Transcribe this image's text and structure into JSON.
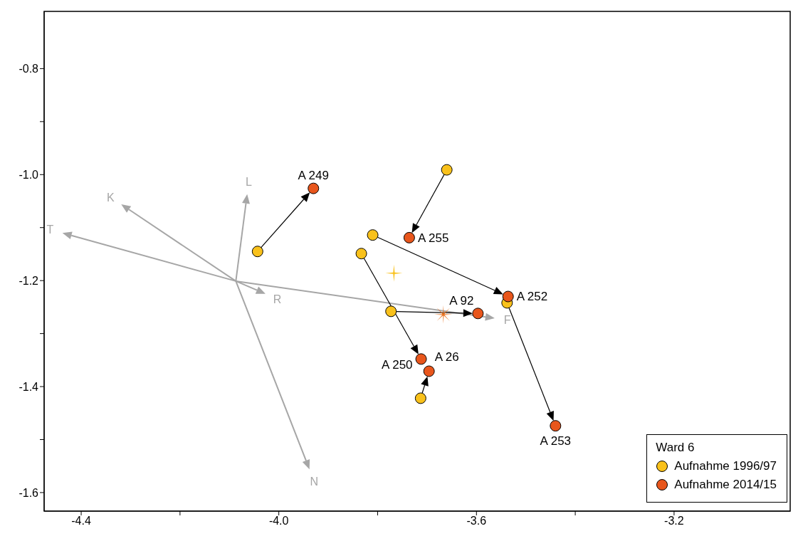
{
  "chart_data": {
    "type": "scatter",
    "xlim": [
      -4.475,
      -2.965
    ],
    "ylim": [
      -1.635,
      -0.692
    ],
    "xticks": [
      {
        "value": -4.4,
        "label": "-4.4"
      },
      {
        "value": -4.2,
        "label": null
      },
      {
        "value": -4.0,
        "label": "-4.0"
      },
      {
        "value": -3.8,
        "label": null
      },
      {
        "value": -3.6,
        "label": "-3.6"
      },
      {
        "value": -3.4,
        "label": null
      },
      {
        "value": -3.2,
        "label": "-3.2"
      }
    ],
    "yticks": [
      {
        "value": -0.8,
        "label": "-0.8"
      },
      {
        "value": -0.9,
        "label": null
      },
      {
        "value": -1.0,
        "label": "-1.0"
      },
      {
        "value": -1.1,
        "label": null
      },
      {
        "value": -1.2,
        "label": "-1.2"
      },
      {
        "value": -1.3,
        "label": null
      },
      {
        "value": -1.4,
        "label": "-1.4"
      },
      {
        "value": -1.5,
        "label": null
      },
      {
        "value": -1.6,
        "label": "-1.6"
      }
    ],
    "grid": false,
    "legend": "bottom right",
    "legend_title": "Ward 6",
    "marker": "circle",
    "series": [
      {
        "type": "scatter",
        "name": "Aufnahme 1996/97",
        "color": "#f9c11b",
        "x": [
          -4.043,
          -3.66,
          -3.81,
          -3.833,
          -3.773,
          -3.713,
          -3.538
        ],
        "values": [
          -1.145,
          -0.991,
          -1.114,
          -1.149,
          -1.258,
          -1.422,
          -1.242
        ]
      },
      {
        "type": "scatter",
        "name": "Aufnahme 2014/15",
        "color": "#e8561c",
        "x": [
          -3.93,
          -3.736,
          -3.536,
          -3.712,
          -3.597,
          -3.696,
          -3.44
        ],
        "values": [
          -1.026,
          -1.119,
          -1.23,
          -1.348,
          -1.262,
          -1.371,
          -1.474
        ],
        "value_labels": [
          "A 249",
          "A 255",
          "A 252",
          "A 250",
          "A 92",
          "A 26",
          "A 253"
        ]
      },
      {
        "type": "scatter",
        "marker": "cross",
        "color": "#f9c11b",
        "x": [
          -3.767
        ],
        "values": [
          -1.186
        ]
      },
      {
        "type": "scatter",
        "marker": "star",
        "color": "#e8701c",
        "x": [
          -3.667
        ],
        "values": [
          -1.264
        ]
      }
    ],
    "annotations": [
      "T",
      "K",
      "L",
      "R",
      "F",
      "N"
    ]
  }
}
